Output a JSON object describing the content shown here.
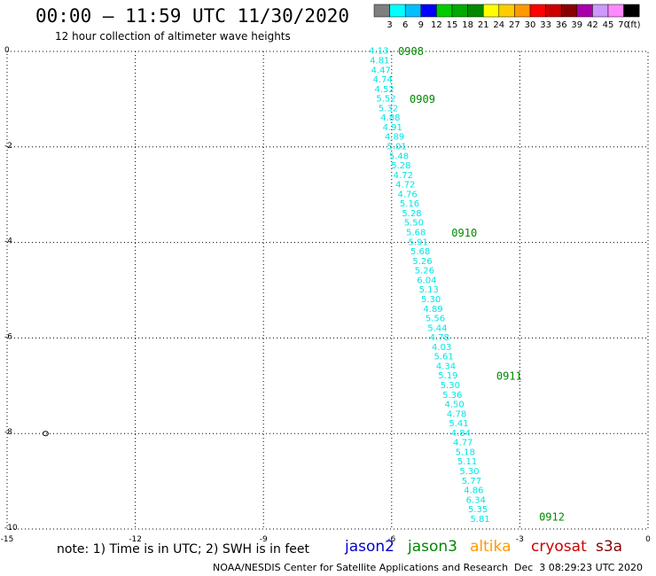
{
  "header": {
    "title": "00:00 – 11:59 UTC 11/30/2020",
    "subtitle": "12 hour collection of altimeter wave heights"
  },
  "color_scale": {
    "labels": [
      "3",
      "6",
      "9",
      "12",
      "15",
      "18",
      "21",
      "24",
      "27",
      "30",
      "33",
      "36",
      "39",
      "42",
      "45",
      "70"
    ],
    "unit": "(ft)",
    "colors": [
      "#7f7f7f",
      "#00ffff",
      "#00bfff",
      "#0000ff",
      "#00cc00",
      "#00aa00",
      "#008800",
      "#ffff00",
      "#ffcc00",
      "#ff9900",
      "#ff0000",
      "#cc0000",
      "#880000",
      "#aa00aa",
      "#cc99ff",
      "#ff88ff",
      "#000000"
    ]
  },
  "footer": {
    "note": "note: 1) Time is in UTC; 2) SWH is in feet",
    "credit": "NOAA/NESDIS Center for Satellite Applications and Research",
    "timestamp": "Dec  3 08:29:23 UTC 2020",
    "satellites": [
      {
        "name": "jason2",
        "color": "#0000cc"
      },
      {
        "name": "jason3",
        "color": "#008800"
      },
      {
        "name": "altika",
        "color": "#ff9900"
      },
      {
        "name": "cryosat",
        "color": "#cc0000"
      },
      {
        "name": "s3a",
        "color": "#8b0000"
      }
    ]
  },
  "chart_data": {
    "type": "scatter",
    "title": "00:00 – 11:59 UTC 11/30/2020",
    "subtitle": "12 hour collection of altimeter wave heights",
    "xlim": [
      -15,
      0
    ],
    "ylim": [
      -10,
      0
    ],
    "x_ticks": [
      -15,
      -12,
      -9,
      -6,
      -3,
      0
    ],
    "y_ticks": [
      0,
      -2,
      -4,
      -6,
      -8,
      -10
    ],
    "grid": true,
    "track_color": "#00e5e5",
    "time_label_color": "#008800",
    "series": [
      {
        "name": "jason3",
        "points": [
          {
            "x": -6.3,
            "y": -0.05,
            "label": "4.13"
          },
          {
            "x": -6.28,
            "y": -0.25,
            "label": "4.81"
          },
          {
            "x": -6.25,
            "y": -0.45,
            "label": "4.47"
          },
          {
            "x": -6.21,
            "y": -0.65,
            "label": "4.74"
          },
          {
            "x": -6.17,
            "y": -0.85,
            "label": "4.52"
          },
          {
            "x": -6.13,
            "y": -1.05,
            "label": "5.52"
          },
          {
            "x": -6.08,
            "y": -1.25,
            "label": "5.32"
          },
          {
            "x": -6.03,
            "y": -1.45,
            "label": "4.88"
          },
          {
            "x": -5.98,
            "y": -1.65,
            "label": "4.91"
          },
          {
            "x": -5.93,
            "y": -1.85,
            "label": "4.89"
          },
          {
            "x": -5.88,
            "y": -2.05,
            "label": "5.01"
          },
          {
            "x": -5.83,
            "y": -2.25,
            "label": "5.48"
          },
          {
            "x": -5.78,
            "y": -2.45,
            "label": "5.28"
          },
          {
            "x": -5.73,
            "y": -2.65,
            "label": "4.72"
          },
          {
            "x": -5.68,
            "y": -2.85,
            "label": "4.72"
          },
          {
            "x": -5.63,
            "y": -3.05,
            "label": "4.76"
          },
          {
            "x": -5.58,
            "y": -3.25,
            "label": "5.16"
          },
          {
            "x": -5.53,
            "y": -3.45,
            "label": "5.28"
          },
          {
            "x": -5.48,
            "y": -3.65,
            "label": "5.50"
          },
          {
            "x": -5.43,
            "y": -3.85,
            "label": "5.68"
          },
          {
            "x": -5.38,
            "y": -4.05,
            "label": "5.91"
          },
          {
            "x": -5.33,
            "y": -4.25,
            "label": "5.68"
          },
          {
            "x": -5.28,
            "y": -4.45,
            "label": "5.26"
          },
          {
            "x": -5.23,
            "y": -4.65,
            "label": "5.26"
          },
          {
            "x": -5.18,
            "y": -4.85,
            "label": "6.04"
          },
          {
            "x": -5.13,
            "y": -5.05,
            "label": "5.13"
          },
          {
            "x": -5.08,
            "y": -5.25,
            "label": "5.30"
          },
          {
            "x": -5.03,
            "y": -5.45,
            "label": "4.89"
          },
          {
            "x": -4.98,
            "y": -5.65,
            "label": "5.56"
          },
          {
            "x": -4.93,
            "y": -5.85,
            "label": "5.44"
          },
          {
            "x": -4.88,
            "y": -6.05,
            "label": "4.78"
          },
          {
            "x": -4.83,
            "y": -6.25,
            "label": "4.03"
          },
          {
            "x": -4.78,
            "y": -6.45,
            "label": "5.61"
          },
          {
            "x": -4.73,
            "y": -6.65,
            "label": "4.34"
          },
          {
            "x": -4.68,
            "y": -6.85,
            "label": "5.19"
          },
          {
            "x": -4.63,
            "y": -7.05,
            "label": "5.30"
          },
          {
            "x": -4.58,
            "y": -7.25,
            "label": "5.36"
          },
          {
            "x": -4.53,
            "y": -7.45,
            "label": "4.50"
          },
          {
            "x": -4.48,
            "y": -7.65,
            "label": "4.78"
          },
          {
            "x": -4.43,
            "y": -7.85,
            "label": "5.41"
          },
          {
            "x": -4.38,
            "y": -8.05,
            "label": "4.84"
          },
          {
            "x": -4.33,
            "y": -8.25,
            "label": "4.77"
          },
          {
            "x": -4.28,
            "y": -8.45,
            "label": "5.18"
          },
          {
            "x": -4.23,
            "y": -8.65,
            "label": "5.11"
          },
          {
            "x": -4.18,
            "y": -8.85,
            "label": "5.30"
          },
          {
            "x": -4.13,
            "y": -9.05,
            "label": "5.77"
          },
          {
            "x": -4.08,
            "y": -9.25,
            "label": "4.86"
          },
          {
            "x": -4.03,
            "y": -9.45,
            "label": "6.34"
          },
          {
            "x": -3.98,
            "y": -9.65,
            "label": "5.35"
          },
          {
            "x": -3.93,
            "y": -9.85,
            "label": "5.81"
          }
        ]
      }
    ],
    "time_labels": [
      {
        "x": -5.85,
        "y": 0.0,
        "label": "0908"
      },
      {
        "x": -5.58,
        "y": -1.0,
        "label": "0909"
      },
      {
        "x": -4.6,
        "y": -3.8,
        "label": "0910"
      },
      {
        "x": -3.55,
        "y": -6.8,
        "label": "0911"
      },
      {
        "x": -2.55,
        "y": -9.75,
        "label": "0912"
      }
    ],
    "markers": [
      {
        "x": -14.1,
        "y": -8.0
      }
    ]
  }
}
